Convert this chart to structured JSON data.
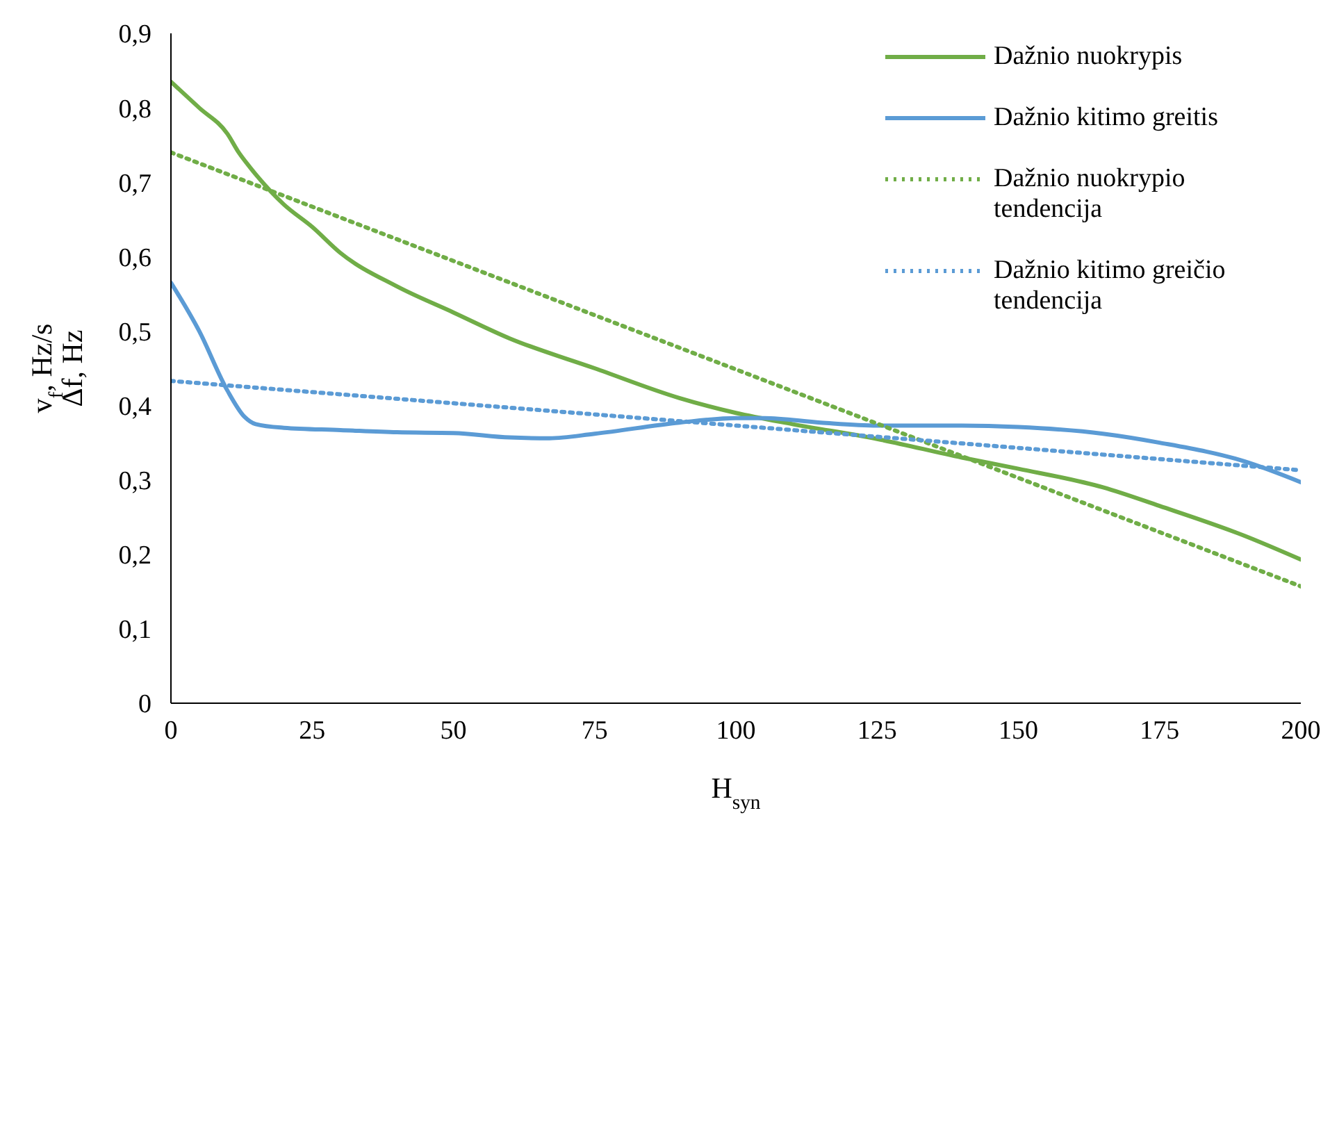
{
  "chart_data": {
    "type": "line",
    "xlabel": "H$_{syn}$",
    "ylabel": "v$_{f}$, Hz/s\nΔf, Hz",
    "xlim": [
      0,
      200
    ],
    "xticks": [
      0,
      25,
      50,
      75,
      100,
      125,
      150,
      175,
      200
    ],
    "ylim": [
      0,
      0.9
    ],
    "yticks": [
      {
        "value": 0,
        "label": "0"
      },
      {
        "value": 0.1,
        "label": "0,1"
      },
      {
        "value": 0.2,
        "label": "0,2"
      },
      {
        "value": 0.3,
        "label": "0,3"
      },
      {
        "value": 0.4,
        "label": "0,4"
      },
      {
        "value": 0.5,
        "label": "0,5"
      },
      {
        "value": 0.6,
        "label": "0,6"
      },
      {
        "value": 0.7,
        "label": "0,7"
      },
      {
        "value": 0.8,
        "label": "0,8"
      },
      {
        "value": 0.9,
        "label": "0,9"
      }
    ],
    "grid": false,
    "legend": "top right",
    "marker": "none",
    "series": [
      {
        "name": "Dažnio nuokrypis",
        "color": "#70ad47",
        "line_style": "solid",
        "x": [
          0,
          5,
          10,
          12,
          14,
          20,
          25,
          30,
          40,
          50,
          60,
          75,
          90,
          100,
          110,
          125,
          140,
          150,
          165,
          175,
          190,
          200
        ],
        "values": [
          0.835,
          0.8,
          0.765,
          0.74,
          0.72,
          0.67,
          0.64,
          0.605,
          0.56,
          0.525,
          0.49,
          0.45,
          0.41,
          0.39,
          0.375,
          0.355,
          0.33,
          0.315,
          0.29,
          0.265,
          0.225,
          0.193
        ]
      },
      {
        "name": "Dažnio kitimo greitis",
        "color": "#5b9bd5",
        "line_style": "solid",
        "x": [
          0,
          5,
          10,
          13,
          15,
          20,
          30,
          40,
          50,
          60,
          67,
          75,
          90,
          100,
          105,
          115,
          125,
          140,
          150,
          165,
          175,
          190,
          200
        ],
        "values": [
          0.565,
          0.5,
          0.42,
          0.385,
          0.375,
          0.37,
          0.367,
          0.364,
          0.363,
          0.357,
          0.356,
          0.362,
          0.377,
          0.383,
          0.383,
          0.377,
          0.373,
          0.373,
          0.371,
          0.362,
          0.35,
          0.325,
          0.297
        ]
      },
      {
        "name": "Dažnio nuokrypio tendencija",
        "color": "#70ad47",
        "line_style": "dotted",
        "x": [
          0,
          200
        ],
        "values": [
          0.74,
          0.157
        ]
      },
      {
        "name": "Dažnio kitimo greičio tendencija",
        "color": "#5b9bd5",
        "line_style": "dotted",
        "x": [
          0,
          200
        ],
        "values": [
          0.433,
          0.313
        ]
      }
    ]
  }
}
